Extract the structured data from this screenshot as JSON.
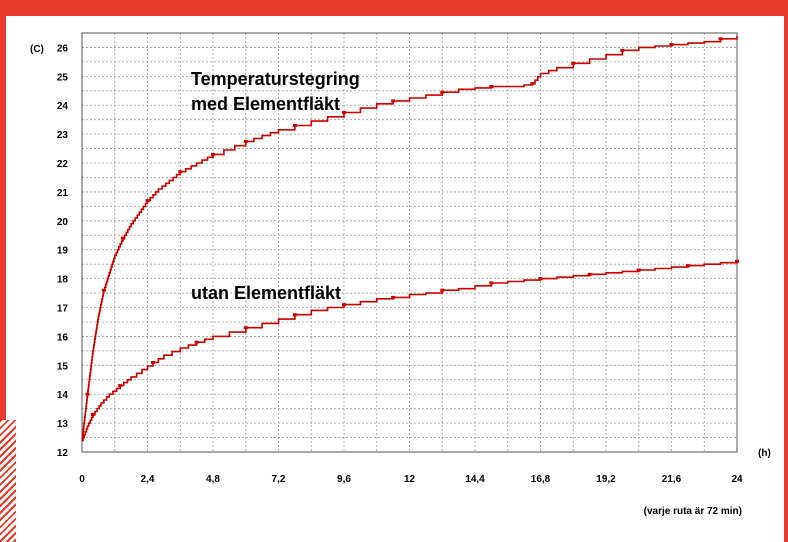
{
  "colors": {
    "accent": "#e8392a",
    "series": "#cc0000",
    "grid": "#9a9a9a"
  },
  "chart_data": {
    "type": "line",
    "title": "",
    "xlabel": "(h)",
    "ylabel": "(C)",
    "xlim": [
      0,
      24
    ],
    "ylim": [
      12,
      26.5
    ],
    "x_ticks": [
      "0",
      "2,4",
      "4,8",
      "7,2",
      "9,6",
      "12",
      "14,4",
      "16,8",
      "19,2",
      "21,6",
      "24"
    ],
    "y_ticks": [
      "12",
      "13",
      "14",
      "15",
      "16",
      "17",
      "18",
      "19",
      "20",
      "21",
      "22",
      "23",
      "24",
      "25",
      "26"
    ],
    "grid": true,
    "minor_grid_x": 2,
    "minor_grid_y": 2,
    "annotations": [
      {
        "text": "Temperaturstegring",
        "series": 0
      },
      {
        "text": "med Elementfläkt",
        "series": 0
      },
      {
        "text": "utan Elementfläkt",
        "series": 1
      }
    ],
    "footnote": "(varje ruta är 72 min)",
    "series": [
      {
        "x": [
          0,
          0.1,
          0.2,
          0.4,
          0.6,
          0.8,
          1.0,
          1.2,
          1.5,
          1.8,
          2.1,
          2.4,
          2.8,
          3.2,
          3.6,
          4.0,
          4.4,
          4.8,
          5.2,
          5.6,
          6.0,
          6.6,
          7.2,
          7.8,
          8.4,
          9.0,
          9.6,
          10.2,
          10.8,
          11.4,
          12.0,
          12.6,
          13.2,
          13.8,
          14.4,
          15.0,
          15.6,
          16.2,
          16.5,
          16.8,
          17.4,
          18.0,
          18.6,
          19.2,
          19.8,
          20.4,
          21.0,
          21.6,
          22.2,
          22.8,
          23.4,
          24.0
        ],
        "y": [
          12.4,
          13.2,
          14.0,
          15.5,
          16.7,
          17.6,
          18.2,
          18.8,
          19.4,
          19.9,
          20.3,
          20.7,
          21.1,
          21.4,
          21.7,
          21.9,
          22.1,
          22.3,
          22.45,
          22.6,
          22.75,
          22.95,
          23.15,
          23.3,
          23.45,
          23.6,
          23.75,
          23.9,
          24.05,
          24.15,
          24.25,
          24.35,
          24.45,
          24.55,
          24.6,
          24.65,
          24.65,
          24.7,
          24.75,
          25.1,
          25.3,
          25.45,
          25.6,
          25.75,
          25.9,
          26.0,
          26.05,
          26.1,
          26.15,
          26.2,
          26.3,
          26.4
        ]
      },
      {
        "x": [
          0,
          0.2,
          0.4,
          0.7,
          1.0,
          1.4,
          1.8,
          2.2,
          2.6,
          3.0,
          3.6,
          4.2,
          4.8,
          5.4,
          6.0,
          6.6,
          7.2,
          7.8,
          8.4,
          9.0,
          9.6,
          10.2,
          10.8,
          11.4,
          12.0,
          12.6,
          13.2,
          13.8,
          14.4,
          15.0,
          15.6,
          16.2,
          16.8,
          17.4,
          18.0,
          18.6,
          19.2,
          19.8,
          20.4,
          21.0,
          21.6,
          22.2,
          22.8,
          23.4,
          24.0
        ],
        "y": [
          12.4,
          12.9,
          13.3,
          13.7,
          14.0,
          14.3,
          14.6,
          14.85,
          15.1,
          15.35,
          15.6,
          15.8,
          16.0,
          16.15,
          16.3,
          16.45,
          16.6,
          16.75,
          16.9,
          17.0,
          17.1,
          17.2,
          17.3,
          17.35,
          17.45,
          17.5,
          17.6,
          17.65,
          17.75,
          17.85,
          17.9,
          17.95,
          18.0,
          18.05,
          18.1,
          18.15,
          18.2,
          18.25,
          18.3,
          18.35,
          18.4,
          18.45,
          18.5,
          18.55,
          18.6
        ]
      }
    ]
  }
}
